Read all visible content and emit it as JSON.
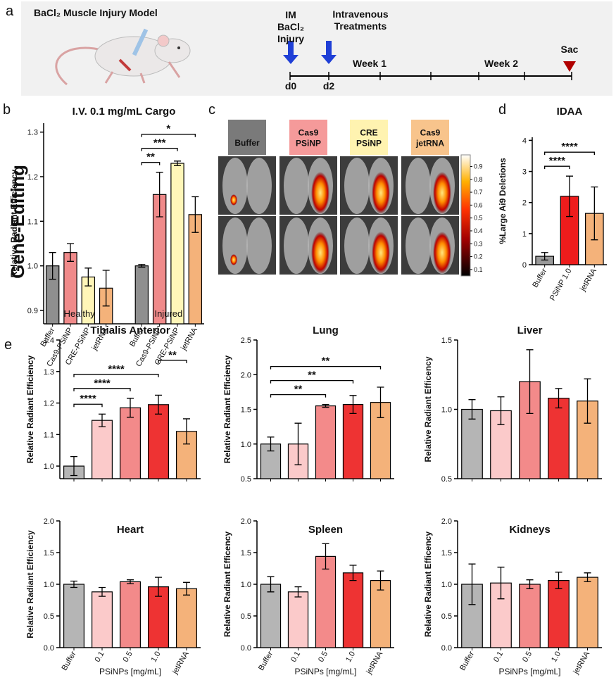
{
  "panel_labels": [
    "a",
    "b",
    "c",
    "d",
    "e"
  ],
  "timeline": {
    "title": "BaCl₂ Muscle Injury Model",
    "injury": [
      "IM",
      "BaCl₂",
      "Injury"
    ],
    "treatment": [
      "Intravenous",
      "Treatments"
    ],
    "weeks": [
      "Week 1",
      "Week 2"
    ],
    "days": [
      "d0",
      "d2"
    ],
    "end": "Sac"
  },
  "side_label": "Gene-Editing",
  "imaging": {
    "columns": [
      [
        "Buffer"
      ],
      [
        "Cas9",
        "PSiNP"
      ],
      [
        "CRE",
        "PSiNP"
      ],
      [
        "Cas9",
        "jetRNA"
      ]
    ],
    "column_colors": [
      "#7a7a7a",
      "#f59a9a",
      "#fff3b0",
      "#f8c48c"
    ],
    "colorbar_lim": [
      0.05,
      0.99
    ],
    "colorbar_ticks": [
      0.1,
      0.2,
      0.3,
      0.4,
      0.5,
      0.6,
      0.7,
      0.8,
      0.9
    ]
  },
  "chart_data": [
    {
      "type": "bar",
      "title": "I.V. 0.1 mg/mL Cargo",
      "y_label": "Relative Radiant  Efficiency",
      "categories": [
        "Buffer",
        "Cas9-PSiNP",
        "CRE-PSiNP",
        "jetRNA",
        "Buffer",
        "Cas9-PSiNP",
        "CRE-PSiNP",
        "jetRNA"
      ],
      "groups": [
        "Healthy",
        "Injured"
      ],
      "values": [
        1.0,
        1.03,
        0.975,
        0.95,
        1.0,
        1.16,
        1.23,
        1.115
      ],
      "errors": [
        0.03,
        0.02,
        0.02,
        0.04,
        0.003,
        0.05,
        0.005,
        0.04
      ],
      "colors": [
        "#8f8f8f",
        "#f08a8a",
        "#fff6b8",
        "#f4b27a",
        "#8f8f8f",
        "#f08a8a",
        "#fff6b8",
        "#f4b27a"
      ],
      "ylim": [
        0.87,
        1.32
      ],
      "yticks": [
        0.9,
        {
          "value": 1.0,
          "label": "1.0"
        },
        1.1,
        1.2,
        1.3
      ],
      "significance": [
        {
          "text": "**",
          "between": [
            4,
            5
          ]
        },
        {
          "text": "***",
          "between": [
            4,
            6
          ]
        },
        {
          "text": "*",
          "between": [
            4,
            7
          ]
        }
      ]
    },
    {
      "type": "bar",
      "title": "IDAA",
      "y_label": "%Large Ai9 Deletions",
      "categories": [
        "Buffer",
        "PSiNP 1.0",
        "jetRNA"
      ],
      "values": [
        0.27,
        2.2,
        1.65
      ],
      "errors": [
        0.12,
        0.65,
        0.85
      ],
      "colors": [
        "#9a9a9a",
        "#ee1c1c",
        "#f4b27a"
      ],
      "ylim": [
        0,
        4.1
      ],
      "yticks": [
        0,
        1,
        2,
        3,
        4
      ],
      "significance": [
        {
          "text": "****",
          "between": [
            0,
            1
          ]
        },
        {
          "text": "****",
          "between": [
            0,
            2
          ]
        }
      ]
    },
    {
      "type": "bar",
      "title": "Tibialis Anterior",
      "y_label": "Relative Radiant Efficiency",
      "categories": [
        "Buffer",
        "0.1",
        "0.5",
        "1.0",
        "jetRNA"
      ],
      "values": [
        1.0,
        1.145,
        1.185,
        1.195,
        1.11
      ],
      "errors": [
        0.03,
        0.02,
        0.03,
        0.03,
        0.04
      ],
      "colors": [
        "#b5b5b5",
        "#fbcaca",
        "#f38a8a",
        "#ee3333",
        "#f4b27a"
      ],
      "ylim": [
        0.96,
        1.4
      ],
      "yticks": [
        {
          "value": 1.0,
          "label": "1.0"
        },
        1.1,
        1.2,
        1.3,
        1.4
      ],
      "significance": [
        {
          "text": "****",
          "between": [
            0,
            1
          ]
        },
        {
          "text": "****",
          "between": [
            0,
            2
          ]
        },
        {
          "text": "****",
          "between": [
            0,
            3
          ]
        },
        {
          "text": "**",
          "between": [
            3,
            4
          ]
        }
      ]
    },
    {
      "type": "bar",
      "title": "Lung",
      "y_label": "Relative Radiant Efficiency",
      "categories": [
        "Buffer",
        "0.1",
        "0.5",
        "1.0",
        "jetRNA"
      ],
      "values": [
        1.0,
        1.0,
        1.55,
        1.57,
        1.6
      ],
      "errors": [
        0.1,
        0.3,
        0.02,
        0.13,
        0.22
      ],
      "colors": [
        "#b5b5b5",
        "#fbcaca",
        "#f38a8a",
        "#ee3333",
        "#f4b27a"
      ],
      "ylim": [
        0.5,
        2.5
      ],
      "yticks": [
        0.5,
        {
          "value": 1.0,
          "label": "1.0"
        },
        1.5,
        {
          "value": 2.0,
          "label": "2.0"
        },
        2.5
      ],
      "significance": [
        {
          "text": "**",
          "between": [
            0,
            2
          ]
        },
        {
          "text": "**",
          "between": [
            0,
            3
          ]
        },
        {
          "text": "**",
          "between": [
            0,
            4
          ]
        }
      ]
    },
    {
      "type": "bar",
      "title": "Liver",
      "y_label": "Relative Radiant Efficency",
      "categories": [
        "Buffer",
        "0.1",
        "0.5",
        "1.0",
        "jetRNA"
      ],
      "values": [
        1.0,
        0.99,
        1.2,
        1.08,
        1.06
      ],
      "errors": [
        0.07,
        0.1,
        0.23,
        0.07,
        0.16
      ],
      "colors": [
        "#b5b5b5",
        "#fbcaca",
        "#f38a8a",
        "#ee3333",
        "#f4b27a"
      ],
      "ylim": [
        0.5,
        1.5
      ],
      "yticks": [
        0.5,
        {
          "value": 1.0,
          "label": "1.0"
        },
        1.5
      ]
    },
    {
      "type": "bar",
      "title": "Heart",
      "y_label": "Relative Radiant Efficiency",
      "x_label": "PSiNPs [mg/mL]",
      "categories": [
        "Buffer",
        "0.1",
        "0.5",
        "1.0",
        "jetRNA"
      ],
      "values": [
        1.0,
        0.88,
        1.04,
        0.96,
        0.93
      ],
      "errors": [
        0.05,
        0.07,
        0.03,
        0.15,
        0.1
      ],
      "colors": [
        "#b5b5b5",
        "#fbcaca",
        "#f38a8a",
        "#ee3333",
        "#f4b27a"
      ],
      "ylim": [
        0,
        2
      ],
      "yticks": [
        {
          "value": 0,
          "label": "0.0"
        },
        0.5,
        {
          "value": 1.0,
          "label": "1.0"
        },
        1.5,
        {
          "value": 2.0,
          "label": "2.0"
        }
      ]
    },
    {
      "type": "bar",
      "title": "Spleen",
      "y_label": "Relative Radiant Efficency",
      "x_label": "PSiNPs [mg/mL]",
      "categories": [
        "Buffer",
        "0.1",
        "0.5",
        "1.0",
        "jetRNA"
      ],
      "values": [
        1.0,
        0.88,
        1.44,
        1.18,
        1.06
      ],
      "errors": [
        0.12,
        0.08,
        0.2,
        0.12,
        0.15
      ],
      "colors": [
        "#b5b5b5",
        "#fbcaca",
        "#f38a8a",
        "#ee3333",
        "#f4b27a"
      ],
      "ylim": [
        0,
        2
      ],
      "yticks": [
        {
          "value": 0,
          "label": "0.0"
        },
        0.5,
        {
          "value": 1.0,
          "label": "1.0"
        },
        1.5,
        {
          "value": 2.0,
          "label": "2.0"
        }
      ]
    },
    {
      "type": "bar",
      "title": "Kidneys",
      "y_label": "Relative Radiant Efficency",
      "x_label": "PSiNPs [mg/mL]",
      "categories": [
        "Buffer",
        "0.1",
        "0.5",
        "1.0",
        "jetRNA"
      ],
      "values": [
        1.0,
        1.02,
        1.0,
        1.06,
        1.11
      ],
      "errors": [
        0.32,
        0.25,
        0.07,
        0.13,
        0.07
      ],
      "colors": [
        "#b5b5b5",
        "#fbcaca",
        "#f38a8a",
        "#ee3333",
        "#f4b27a"
      ],
      "ylim": [
        0,
        2
      ],
      "yticks": [
        {
          "value": 0,
          "label": "0.0"
        },
        0.5,
        {
          "value": 1.0,
          "label": "1.0"
        },
        1.5,
        {
          "value": 2.0,
          "label": "2.0"
        }
      ]
    }
  ]
}
